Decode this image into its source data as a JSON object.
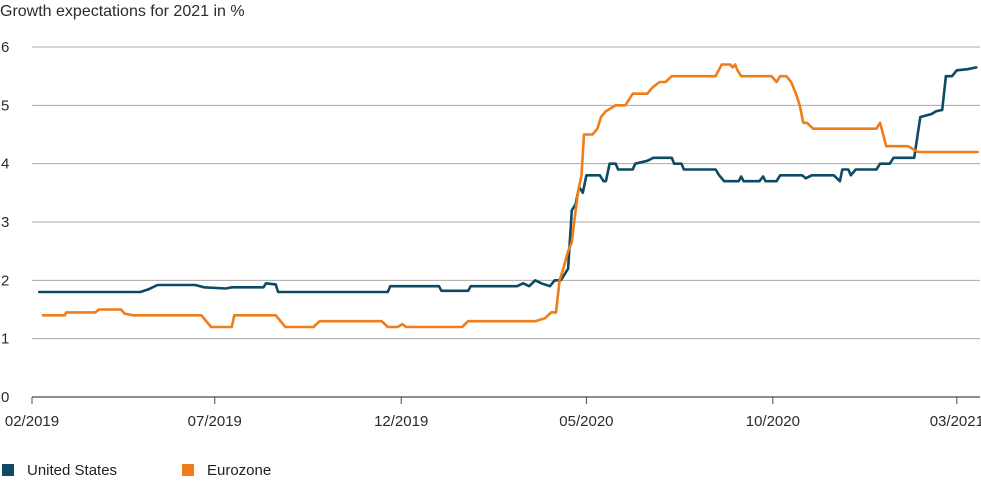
{
  "chart_data": {
    "type": "line",
    "title": "Growth expectations for 2021 in %",
    "ylim": [
      0,
      6
    ],
    "yticks": [
      "0",
      "1",
      "2",
      "3",
      "4",
      "5",
      "6"
    ],
    "xlim": [
      "2019-02-01",
      "2021-03-20"
    ],
    "xticks": [
      {
        "date": "2019-02-01",
        "label": "02/2019"
      },
      {
        "date": "2019-07-01",
        "label": "07/2019"
      },
      {
        "date": "2019-12-01",
        "label": "12/2019"
      },
      {
        "date": "2020-05-01",
        "label": "05/2020"
      },
      {
        "date": "2020-10-01",
        "label": "10/2020"
      },
      {
        "date": "2021-03-01",
        "label": "03/2021"
      }
    ],
    "grid": true,
    "legend": "bottom-left",
    "series": [
      {
        "name": "United States",
        "color": "#0d4a63",
        "points": [
          [
            "2019-02-07",
            1.8
          ],
          [
            "2019-03-20",
            1.8
          ],
          [
            "2019-04-10",
            1.8
          ],
          [
            "2019-05-01",
            1.8
          ],
          [
            "2019-05-08",
            1.85
          ],
          [
            "2019-05-15",
            1.92
          ],
          [
            "2019-06-15",
            1.92
          ],
          [
            "2019-06-22",
            1.88
          ],
          [
            "2019-07-10",
            1.86
          ],
          [
            "2019-07-15",
            1.88
          ],
          [
            "2019-08-10",
            1.88
          ],
          [
            "2019-08-12",
            1.95
          ],
          [
            "2019-08-20",
            1.93
          ],
          [
            "2019-08-22",
            1.8
          ],
          [
            "2019-09-25",
            1.8
          ],
          [
            "2019-11-20",
            1.8
          ],
          [
            "2019-11-22",
            1.9
          ],
          [
            "2020-01-01",
            1.9
          ],
          [
            "2020-01-03",
            1.82
          ],
          [
            "2020-01-25",
            1.82
          ],
          [
            "2020-01-27",
            1.9
          ],
          [
            "2020-03-05",
            1.9
          ],
          [
            "2020-03-10",
            1.95
          ],
          [
            "2020-03-15",
            1.9
          ],
          [
            "2020-03-20",
            2.0
          ],
          [
            "2020-03-25",
            1.95
          ],
          [
            "2020-04-01",
            1.9
          ],
          [
            "2020-04-05",
            2.0
          ],
          [
            "2020-04-10",
            2.0
          ],
          [
            "2020-04-13",
            2.1
          ],
          [
            "2020-04-16",
            2.2
          ],
          [
            "2020-04-19",
            3.2
          ],
          [
            "2020-04-22",
            3.3
          ],
          [
            "2020-04-25",
            3.6
          ],
          [
            "2020-04-28",
            3.5
          ],
          [
            "2020-05-01",
            3.8
          ],
          [
            "2020-05-12",
            3.8
          ],
          [
            "2020-05-15",
            3.7
          ],
          [
            "2020-05-17",
            3.7
          ],
          [
            "2020-05-20",
            4.0
          ],
          [
            "2020-05-25",
            4.0
          ],
          [
            "2020-05-27",
            3.9
          ],
          [
            "2020-06-08",
            3.9
          ],
          [
            "2020-06-10",
            4.0
          ],
          [
            "2020-06-20",
            4.05
          ],
          [
            "2020-06-25",
            4.1
          ],
          [
            "2020-07-10",
            4.1
          ],
          [
            "2020-07-12",
            4.0
          ],
          [
            "2020-07-18",
            4.0
          ],
          [
            "2020-07-20",
            3.9
          ],
          [
            "2020-08-15",
            3.9
          ],
          [
            "2020-08-18",
            3.8
          ],
          [
            "2020-08-22",
            3.7
          ],
          [
            "2020-09-03",
            3.7
          ],
          [
            "2020-09-05",
            3.78
          ],
          [
            "2020-09-07",
            3.7
          ],
          [
            "2020-09-20",
            3.7
          ],
          [
            "2020-09-23",
            3.78
          ],
          [
            "2020-09-25",
            3.7
          ],
          [
            "2020-10-04",
            3.7
          ],
          [
            "2020-10-07",
            3.8
          ],
          [
            "2020-10-25",
            3.8
          ],
          [
            "2020-10-28",
            3.75
          ],
          [
            "2020-11-02",
            3.8
          ],
          [
            "2020-11-20",
            3.8
          ],
          [
            "2020-11-25",
            3.7
          ],
          [
            "2020-11-27",
            3.9
          ],
          [
            "2020-12-02",
            3.9
          ],
          [
            "2020-12-04",
            3.8
          ],
          [
            "2020-12-08",
            3.9
          ],
          [
            "2020-12-25",
            3.9
          ],
          [
            "2020-12-28",
            4.0
          ],
          [
            "2021-01-05",
            4.0
          ],
          [
            "2021-01-08",
            4.1
          ],
          [
            "2021-01-25",
            4.1
          ],
          [
            "2021-01-30",
            4.8
          ],
          [
            "2021-02-08",
            4.85
          ],
          [
            "2021-02-12",
            4.9
          ],
          [
            "2021-02-17",
            4.92
          ],
          [
            "2021-02-20",
            5.5
          ],
          [
            "2021-02-25",
            5.5
          ],
          [
            "2021-03-01",
            5.6
          ],
          [
            "2021-03-10",
            5.62
          ],
          [
            "2021-03-17",
            5.65
          ]
        ]
      },
      {
        "name": "Eurozone",
        "color": "#ef7d1a",
        "points": [
          [
            "2019-02-10",
            1.4
          ],
          [
            "2019-02-28",
            1.4
          ],
          [
            "2019-03-01",
            1.45
          ],
          [
            "2019-03-25",
            1.45
          ],
          [
            "2019-03-28",
            1.5
          ],
          [
            "2019-04-15",
            1.5
          ],
          [
            "2019-04-18",
            1.43
          ],
          [
            "2019-04-25",
            1.4
          ],
          [
            "2019-06-20",
            1.4
          ],
          [
            "2019-06-28",
            1.2
          ],
          [
            "2019-07-15",
            1.2
          ],
          [
            "2019-07-17",
            1.4
          ],
          [
            "2019-08-20",
            1.4
          ],
          [
            "2019-08-28",
            1.2
          ],
          [
            "2019-09-20",
            1.2
          ],
          [
            "2019-09-25",
            1.3
          ],
          [
            "2019-11-15",
            1.3
          ],
          [
            "2019-11-20",
            1.2
          ],
          [
            "2019-11-28",
            1.2
          ],
          [
            "2019-12-02",
            1.25
          ],
          [
            "2019-12-05",
            1.2
          ],
          [
            "2020-01-20",
            1.2
          ],
          [
            "2020-01-25",
            1.3
          ],
          [
            "2020-03-20",
            1.3
          ],
          [
            "2020-03-28",
            1.35
          ],
          [
            "2020-04-02",
            1.45
          ],
          [
            "2020-04-06",
            1.45
          ],
          [
            "2020-04-09",
            2.0
          ],
          [
            "2020-04-12",
            2.2
          ],
          [
            "2020-04-16",
            2.5
          ],
          [
            "2020-04-19",
            2.65
          ],
          [
            "2020-04-21",
            3.0
          ],
          [
            "2020-04-24",
            3.5
          ],
          [
            "2020-04-27",
            3.8
          ],
          [
            "2020-04-29",
            4.5
          ],
          [
            "2020-05-02",
            4.5
          ],
          [
            "2020-05-06",
            4.5
          ],
          [
            "2020-05-10",
            4.6
          ],
          [
            "2020-05-13",
            4.8
          ],
          [
            "2020-05-17",
            4.9
          ],
          [
            "2020-05-25",
            5.0
          ],
          [
            "2020-06-02",
            5.0
          ],
          [
            "2020-06-08",
            5.2
          ],
          [
            "2020-06-20",
            5.2
          ],
          [
            "2020-06-24",
            5.3
          ],
          [
            "2020-06-30",
            5.4
          ],
          [
            "2020-07-05",
            5.4
          ],
          [
            "2020-07-10",
            5.5
          ],
          [
            "2020-08-15",
            5.5
          ],
          [
            "2020-08-20",
            5.7
          ],
          [
            "2020-08-27",
            5.7
          ],
          [
            "2020-08-29",
            5.65
          ],
          [
            "2020-08-31",
            5.7
          ],
          [
            "2020-09-02",
            5.6
          ],
          [
            "2020-09-05",
            5.5
          ],
          [
            "2020-09-25",
            5.5
          ],
          [
            "2020-09-30",
            5.5
          ],
          [
            "2020-10-04",
            5.4
          ],
          [
            "2020-10-07",
            5.5
          ],
          [
            "2020-10-12",
            5.5
          ],
          [
            "2020-10-16",
            5.4
          ],
          [
            "2020-10-20",
            5.2
          ],
          [
            "2020-10-23",
            5.0
          ],
          [
            "2020-10-26",
            4.7
          ],
          [
            "2020-10-29",
            4.7
          ],
          [
            "2020-11-03",
            4.6
          ],
          [
            "2020-12-25",
            4.6
          ],
          [
            "2020-12-28",
            4.7
          ],
          [
            "2021-01-02",
            4.3
          ],
          [
            "2021-01-20",
            4.3
          ],
          [
            "2021-01-24",
            4.25
          ],
          [
            "2021-01-28",
            4.2
          ],
          [
            "2021-03-18",
            4.2
          ]
        ]
      }
    ]
  }
}
